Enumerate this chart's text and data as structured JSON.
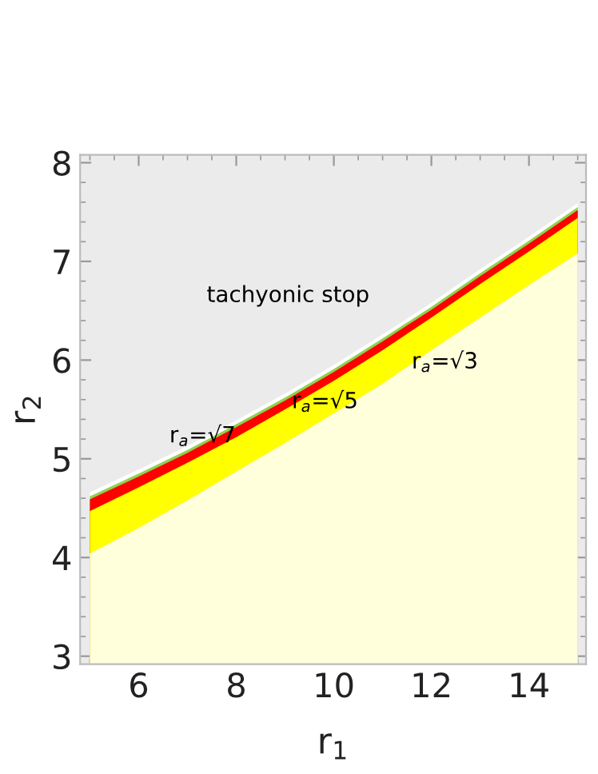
{
  "chart_data": {
    "type": "area",
    "xlabel": "r$_{1}$",
    "ylabel": "r$_{2}$",
    "x": [
      5,
      6,
      7,
      8,
      9,
      10,
      11,
      12,
      13,
      14,
      15
    ],
    "series": [
      {
        "color": "#ffffdc",
        "values": [
          4.04,
          4.3,
          4.58,
          4.87,
          5.16,
          5.46,
          5.76,
          6.1,
          6.43,
          6.76,
          7.08
        ]
      },
      {
        "color": "#ffff00",
        "values": [
          4.47,
          4.71,
          4.96,
          5.22,
          5.5,
          5.79,
          6.1,
          6.43,
          6.77,
          7.1,
          7.44
        ]
      },
      {
        "color": "#ff0000",
        "values": [
          4.59,
          4.82,
          5.06,
          5.32,
          5.59,
          5.88,
          6.19,
          6.51,
          6.85,
          7.18,
          7.52
        ]
      },
      {
        "color": "#8fd14f",
        "values": [
          4.62,
          4.85,
          5.09,
          5.35,
          5.62,
          5.91,
          6.22,
          6.54,
          6.88,
          7.21,
          7.55
        ]
      },
      {
        "color": "#ffffff",
        "values": [
          4.66,
          4.89,
          5.13,
          5.39,
          5.66,
          5.95,
          6.26,
          6.58,
          6.92,
          7.25,
          7.59
        ]
      }
    ],
    "xlim": [
      4.8,
      15.17
    ],
    "ylim": [
      2.92,
      8.08
    ],
    "xticks": [
      6,
      8,
      10,
      12,
      14
    ],
    "yticks": [
      3,
      4,
      5,
      6,
      7,
      8
    ],
    "annotations": [
      "tachyonic stop",
      {
        "text": "r$_{a}$=√7",
        "x": 7.31,
        "y": 5.23
      },
      "r$_{a}$=√5",
      "r$_{a}$=√3"
    ]
  }
}
